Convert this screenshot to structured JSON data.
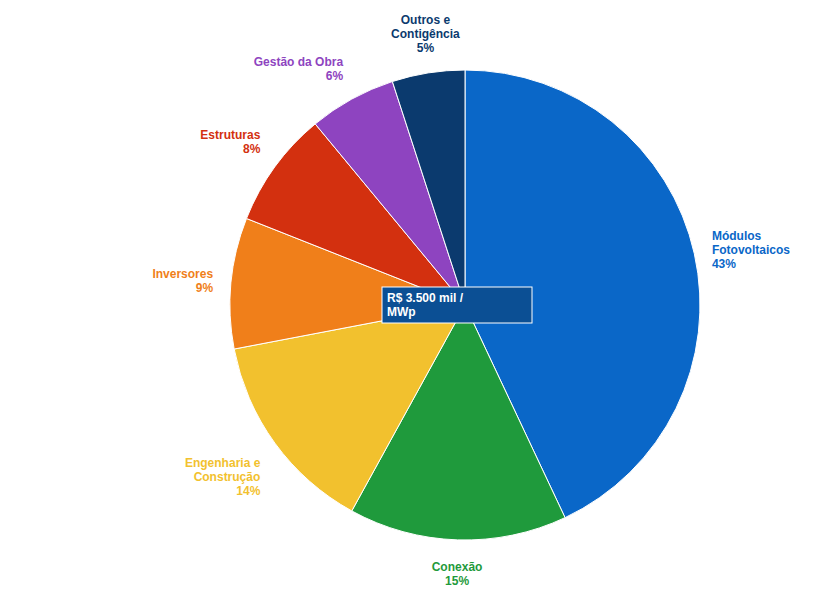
{
  "chart_data": {
    "type": "pie",
    "categories": [
      "Módulos Fotovoltaicos",
      "Conexão",
      "Engenharia e Construção",
      "Inversores",
      "Estruturas",
      "Gestão da Obra",
      "Outros e Contigência"
    ],
    "values": [
      43,
      15,
      14,
      9,
      8,
      6,
      5
    ],
    "value_labels": [
      "43%",
      "15%",
      "14%",
      "9%",
      "8%",
      "6%",
      "5%"
    ],
    "colors": [
      "#0a67c8",
      "#1f9a3c",
      "#f2c12e",
      "#f07f1a",
      "#d3300f",
      "#8e44c0",
      "#0b3a6e"
    ],
    "data_labels": true,
    "annotations": [
      "R$ 3.500 mil / MWp"
    ]
  }
}
